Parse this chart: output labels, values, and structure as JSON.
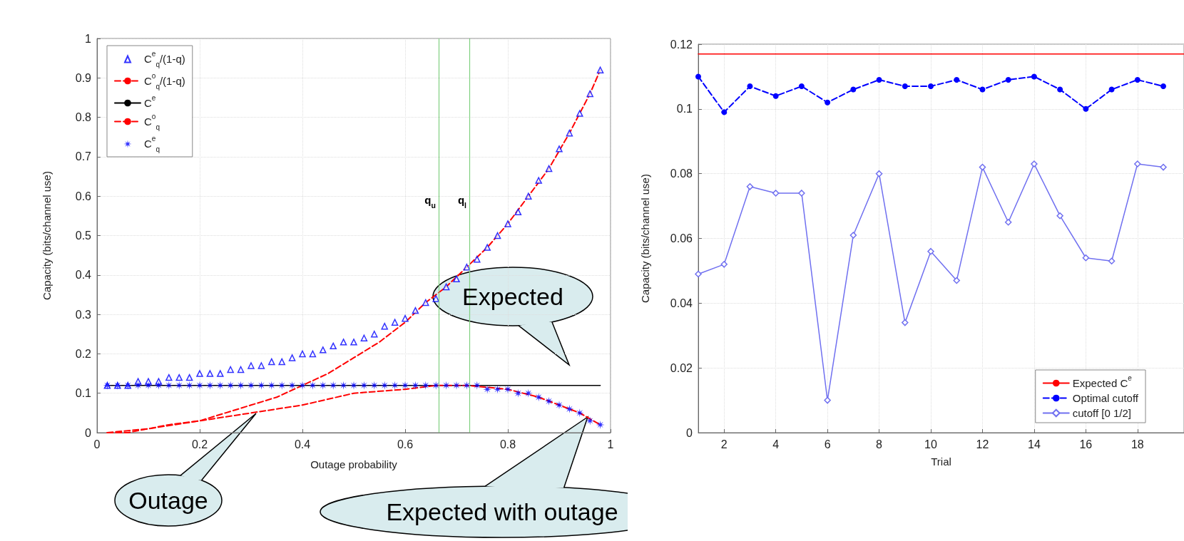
{
  "chart_data": [
    {
      "type": "line",
      "xlabel": "Outage probability",
      "ylabel": "Capacity (bits/channel use)",
      "xlim": [
        0,
        1
      ],
      "ylim": [
        0,
        1
      ],
      "xticks": [
        0,
        0.2,
        0.4,
        0.6,
        0.8,
        1
      ],
      "yticks": [
        0,
        0.1,
        0.2,
        0.3,
        0.4,
        0.5,
        0.6,
        0.7,
        0.8,
        0.9,
        1
      ],
      "grid": true,
      "legend": "top left",
      "x": [
        0.02,
        0.04,
        0.06,
        0.08,
        0.1,
        0.12,
        0.14,
        0.16,
        0.18,
        0.2,
        0.22,
        0.24,
        0.26,
        0.28,
        0.3,
        0.32,
        0.34,
        0.36,
        0.38,
        0.4,
        0.42,
        0.44,
        0.46,
        0.48,
        0.5,
        0.52,
        0.54,
        0.56,
        0.58,
        0.6,
        0.62,
        0.64,
        0.66,
        0.68,
        0.7,
        0.72,
        0.74,
        0.76,
        0.78,
        0.8,
        0.82,
        0.84,
        0.86,
        0.88,
        0.9,
        0.92,
        0.94,
        0.96,
        0.98
      ],
      "series": [
        {
          "name": "C$^{e}$$_{q}$/(1-q)",
          "type": "scatter",
          "marker": "triangle",
          "color": "#0000ff",
          "values": [
            0.12,
            0.12,
            0.12,
            0.13,
            0.13,
            0.13,
            0.14,
            0.14,
            0.14,
            0.15,
            0.15,
            0.15,
            0.16,
            0.16,
            0.17,
            0.17,
            0.18,
            0.18,
            0.19,
            0.2,
            0.2,
            0.21,
            0.22,
            0.23,
            0.23,
            0.24,
            0.25,
            0.27,
            0.28,
            0.29,
            0.31,
            0.33,
            0.34,
            0.37,
            0.39,
            0.42,
            0.44,
            0.47,
            0.5,
            0.53,
            0.56,
            0.6,
            0.64,
            0.67,
            0.72,
            0.76,
            0.81,
            0.86,
            0.92
          ]
        },
        {
          "name": "C$^{o}$$_{q}$/(1-q)",
          "marker": "none",
          "line_style": "dashed",
          "color": "#ff0000",
          "x": [
            0.02,
            0.06,
            0.1,
            0.14,
            0.2,
            0.25,
            0.3,
            0.35,
            0.4,
            0.45,
            0.5,
            0.55,
            0.6,
            0.64,
            0.68,
            0.72,
            0.76,
            0.8,
            0.84,
            0.88,
            0.92,
            0.96,
            0.98
          ],
          "values": [
            0,
            0,
            0.01,
            0.02,
            0.03,
            0.05,
            0.07,
            0.09,
            0.12,
            0.15,
            0.19,
            0.23,
            0.28,
            0.33,
            0.37,
            0.42,
            0.47,
            0.53,
            0.6,
            0.67,
            0.76,
            0.86,
            0.92
          ]
        },
        {
          "name": "C$^{e}$",
          "marker": "none",
          "line_style": "solid",
          "color": "#000000",
          "x": [
            0.02,
            0.98
          ],
          "values": [
            0.12,
            0.12
          ]
        },
        {
          "name": "C$^{o}$$_{q}$",
          "marker": "none",
          "line_style": "dashed",
          "color": "#ff0000",
          "x": [
            0.02,
            0.1,
            0.2,
            0.3,
            0.4,
            0.5,
            0.6,
            0.66,
            0.72,
            0.8,
            0.86,
            0.9,
            0.94,
            0.98
          ],
          "values": [
            0,
            0.01,
            0.03,
            0.05,
            0.07,
            0.1,
            0.11,
            0.12,
            0.12,
            0.11,
            0.09,
            0.07,
            0.05,
            0.02
          ]
        },
        {
          "name": "C$^{e}$$_{q}$",
          "type": "scatter",
          "marker": "star",
          "color": "#0000ff",
          "values": [
            0.12,
            0.12,
            0.12,
            0.12,
            0.12,
            0.12,
            0.12,
            0.12,
            0.12,
            0.12,
            0.12,
            0.12,
            0.12,
            0.12,
            0.12,
            0.12,
            0.12,
            0.12,
            0.12,
            0.12,
            0.12,
            0.12,
            0.12,
            0.12,
            0.12,
            0.12,
            0.12,
            0.12,
            0.12,
            0.12,
            0.12,
            0.12,
            0.12,
            0.12,
            0.12,
            0.12,
            0.12,
            0.11,
            0.11,
            0.11,
            0.1,
            0.1,
            0.09,
            0.08,
            0.07,
            0.06,
            0.05,
            0.03,
            0.02
          ]
        }
      ],
      "ref_lines": [
        {
          "axis": "x",
          "value": 0.665,
          "label": "q$_{u}$",
          "color": "#80d080"
        },
        {
          "axis": "x",
          "value": 0.725,
          "label": "q$_{l}$",
          "color": "#80d080"
        }
      ],
      "annotations": [
        "Expected",
        "Outage",
        "Expected with outage"
      ]
    },
    {
      "type": "line",
      "xlabel": "Trial",
      "ylabel": "Capacity (bits/channel use)",
      "xlim": [
        1,
        19.8
      ],
      "ylim": [
        0,
        0.12
      ],
      "xticks": [
        2,
        4,
        6,
        8,
        10,
        12,
        14,
        16,
        18
      ],
      "yticks": [
        0,
        0.02,
        0.04,
        0.06,
        0.08,
        0.1,
        0.12
      ],
      "grid": true,
      "legend": "bottom right",
      "x": [
        1,
        2,
        3,
        4,
        5,
        6,
        7,
        8,
        9,
        10,
        11,
        12,
        13,
        14,
        15,
        16,
        17,
        18,
        19
      ],
      "series": [
        {
          "name": "Expected C$^{e}$",
          "marker": "none",
          "line_style": "solid",
          "color": "#ff0000",
          "x": [
            1,
            19.8
          ],
          "values": [
            0.117,
            0.117
          ]
        },
        {
          "name": "Optimal cutoff",
          "marker": "circle",
          "line_style": "dashed",
          "color": "#0000ff",
          "values": [
            0.11,
            0.099,
            0.107,
            0.104,
            0.107,
            0.102,
            0.106,
            0.109,
            0.107,
            0.107,
            0.109,
            0.106,
            0.109,
            0.11,
            0.106,
            0.1,
            0.106,
            0.109,
            0.107
          ]
        },
        {
          "name": "cutoff [0 1/2]",
          "marker": "diamond",
          "line_style": "solid",
          "color": "#7070f0",
          "values": [
            0.049,
            0.052,
            0.076,
            0.074,
            0.074,
            0.01,
            0.061,
            0.08,
            0.034,
            0.056,
            0.047,
            0.082,
            0.065,
            0.083,
            0.067,
            0.054,
            0.053,
            0.083,
            0.082
          ]
        }
      ]
    }
  ]
}
